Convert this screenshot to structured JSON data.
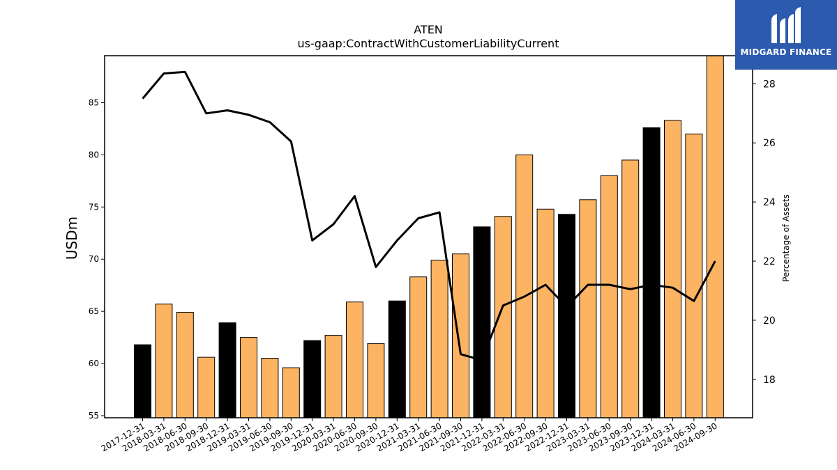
{
  "title": "ATEN",
  "subtitle": "us-gaap:ContractWithCustomerLiabilityCurrent",
  "logo": {
    "text": "MIDGARD FINANCE",
    "bg_color": "#2b5aae"
  },
  "colors": {
    "bar_year_end": "#000000",
    "bar_other": "#fdb462",
    "line": "#000000"
  },
  "chart_data": {
    "type": "bar",
    "categories": [
      "2017-12-31",
      "2018-03-31",
      "2018-06-30",
      "2018-09-30",
      "2018-12-31",
      "2019-03-31",
      "2019-06-30",
      "2019-09-30",
      "2019-12-31",
      "2020-03-31",
      "2020-06-30",
      "2020-09-30",
      "2020-12-31",
      "2021-03-31",
      "2021-06-30",
      "2021-09-30",
      "2021-12-31",
      "2022-03-31",
      "2022-06-30",
      "2022-09-30",
      "2022-12-31",
      "2023-03-31",
      "2023-06-30",
      "2023-09-30",
      "2023-12-31",
      "2024-03-31",
      "2024-06-30",
      "2024-09-30"
    ],
    "ylabel": "USDm",
    "y2label": "Percentage of Assets",
    "ylim": [
      54.8,
      89.5
    ],
    "y2lim": [
      16.7,
      28.95
    ],
    "yticks": [
      55,
      60,
      65,
      70,
      75,
      80,
      85
    ],
    "y2ticks": [
      18,
      20,
      22,
      24,
      26,
      28
    ],
    "series": [
      {
        "axis": "left",
        "kind": "bar",
        "values": [
          61.8,
          65.7,
          64.9,
          60.6,
          63.9,
          62.5,
          60.5,
          59.6,
          62.2,
          62.7,
          65.9,
          61.9,
          66.0,
          68.3,
          69.9,
          70.5,
          73.1,
          74.1,
          80.0,
          74.8,
          74.3,
          75.7,
          78.0,
          79.5,
          82.6,
          83.3,
          82.0,
          89.5
        ],
        "year_end": [
          true,
          false,
          false,
          false,
          true,
          false,
          false,
          false,
          true,
          false,
          false,
          false,
          true,
          false,
          false,
          false,
          true,
          false,
          false,
          false,
          true,
          false,
          false,
          false,
          true,
          false,
          false,
          false
        ]
      },
      {
        "axis": "right",
        "kind": "line",
        "values": [
          27.5,
          28.35,
          28.4,
          27.0,
          27.1,
          26.95,
          26.7,
          26.05,
          22.7,
          23.25,
          24.2,
          21.8,
          22.7,
          23.45,
          23.65,
          18.85,
          18.65,
          20.5,
          20.8,
          21.2,
          20.45,
          21.2,
          21.2,
          21.05,
          21.2,
          21.1,
          20.65,
          22.0
        ]
      }
    ]
  }
}
